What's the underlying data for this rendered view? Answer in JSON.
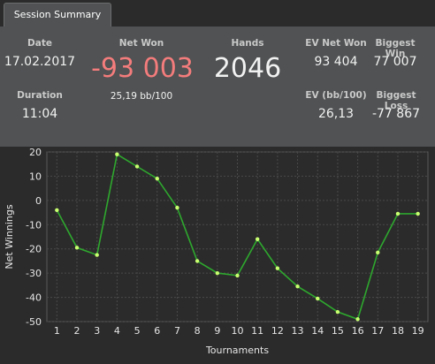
{
  "tab": {
    "label": "Session Summary"
  },
  "summary": {
    "date_label": "Date",
    "date_value": "17.02.2017",
    "duration_label": "Duration",
    "duration_value": "11:04",
    "net_won_label": "Net Won",
    "net_won_value": "-93 003",
    "bb_per_100": "25,19 bb/100",
    "hands_label": "Hands",
    "hands_value": "2046",
    "ev_net_won_label": "EV Net Won",
    "ev_net_won_value": "93 404",
    "biggest_win_label": "Biggest Win",
    "biggest_win_value": "77 007",
    "ev_bb_label": "EV (bb/100)",
    "ev_bb_value": "26,13",
    "biggest_loss_label": "Biggest Loss",
    "biggest_loss_value": "-77 867"
  },
  "colors": {
    "net_won_negative": "#f47c7c",
    "series_line": "#2ea82e",
    "series_point": "#c8ff70"
  },
  "chart_data": {
    "type": "line",
    "xlabel": "Tournaments",
    "ylabel": "Net Winnings",
    "x": [
      1,
      2,
      3,
      4,
      5,
      6,
      7,
      8,
      9,
      10,
      11,
      12,
      13,
      14,
      15,
      16,
      17,
      18,
      19
    ],
    "series": [
      {
        "values": [
          -4,
          -19.5,
          -22.5,
          19,
          14,
          9,
          -3,
          -25,
          -30,
          -31,
          -16,
          -28,
          -35.5,
          -40.5,
          -46,
          -49,
          -21.5,
          -5.5,
          -5.5
        ]
      }
    ],
    "xlim": [
      0.5,
      19.5
    ],
    "ylim": [
      -50,
      20
    ],
    "yticks": [
      20,
      10,
      0,
      -10,
      -20,
      -30,
      -40,
      -50
    ],
    "grid": true
  }
}
